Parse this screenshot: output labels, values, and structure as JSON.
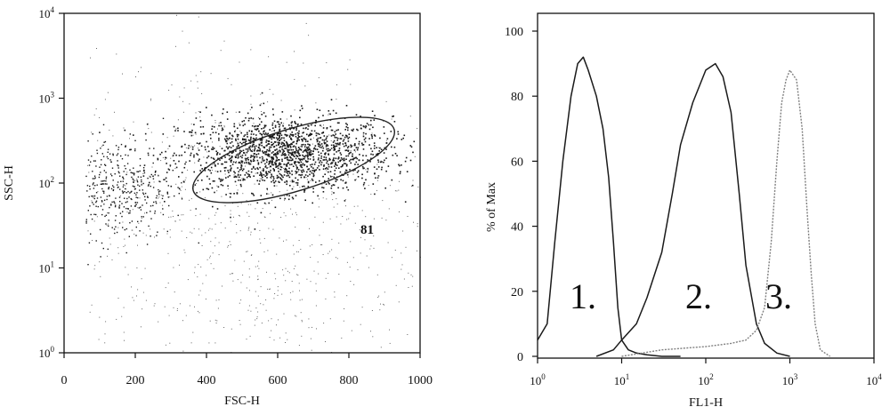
{
  "chart_data": [
    {
      "type": "scatter",
      "xlabel": "FSC-H",
      "ylabel": "SSC-H",
      "xlim": [
        0,
        1000
      ],
      "ylim": [
        1,
        10000
      ],
      "y_scale": "log",
      "x_ticks": [
        "0",
        "200",
        "400",
        "600",
        "800",
        "1000"
      ],
      "y_ticks": [
        {
          "base": "10",
          "exp": "0"
        },
        {
          "base": "10",
          "exp": "1"
        },
        {
          "base": "10",
          "exp": "2"
        },
        {
          "base": "10",
          "exp": "3"
        },
        {
          "base": "10",
          "exp": "4"
        }
      ],
      "gate": {
        "shape": "ellipse",
        "center": [
          640,
          200
        ],
        "x_range": [
          350,
          930
        ],
        "y_range": [
          65,
          650
        ],
        "label": "81"
      },
      "populations": [
        {
          "x_mean": 620,
          "x_sd": 150,
          "log10_y_mean": 2.35,
          "log10_y_sd": 0.22,
          "density": "dense"
        },
        {
          "x_mean": 150,
          "x_sd": 80,
          "log10_y_mean": 1.95,
          "log10_y_sd": 0.3,
          "density": "medium"
        },
        {
          "x_mean": 500,
          "x_sd": 280,
          "log10_y_mean": 1.5,
          "log10_y_sd": 1.0,
          "density": "sparse"
        }
      ]
    },
    {
      "type": "line",
      "xlabel": "FL1-H",
      "ylabel": "% of Max",
      "xlim": [
        1,
        10000
      ],
      "x_scale": "log",
      "ylim": [
        0,
        100
      ],
      "x_ticks": [
        {
          "base": "10",
          "exp": "0"
        },
        {
          "base": "10",
          "exp": "1"
        },
        {
          "base": "10",
          "exp": "2"
        },
        {
          "base": "10",
          "exp": "3"
        },
        {
          "base": "10",
          "exp": "4"
        }
      ],
      "y_ticks": [
        "0",
        "20",
        "40",
        "60",
        "80",
        "100"
      ],
      "series": [
        {
          "label": "1.",
          "x": [
            1,
            1.3,
            1.6,
            2,
            2.5,
            3,
            3.5,
            4,
            5,
            6,
            7,
            8,
            9,
            10,
            12,
            15,
            20,
            30,
            50
          ],
          "y": [
            5,
            10,
            35,
            60,
            80,
            90,
            92,
            88,
            80,
            70,
            55,
            35,
            15,
            5,
            2,
            1,
            0.5,
            0,
            0
          ],
          "color": "#1a1a1a"
        },
        {
          "label": "2.",
          "x": [
            5,
            8,
            10,
            15,
            20,
            30,
            40,
            50,
            70,
            100,
            130,
            160,
            200,
            250,
            300,
            400,
            500,
            700,
            1000
          ],
          "y": [
            0,
            2,
            5,
            10,
            18,
            32,
            50,
            65,
            78,
            88,
            90,
            86,
            75,
            50,
            28,
            10,
            4,
            1,
            0
          ],
          "color": "#1a1a1a"
        },
        {
          "label": "3.",
          "x": [
            10,
            30,
            100,
            200,
            300,
            400,
            500,
            600,
            700,
            800,
            900,
            1000,
            1200,
            1400,
            1600,
            1800,
            2000,
            2300,
            3000
          ],
          "y": [
            0,
            2,
            3,
            4,
            5,
            8,
            15,
            35,
            60,
            78,
            85,
            88,
            85,
            70,
            45,
            25,
            10,
            2,
            0
          ],
          "color": "#808080"
        }
      ]
    }
  ]
}
